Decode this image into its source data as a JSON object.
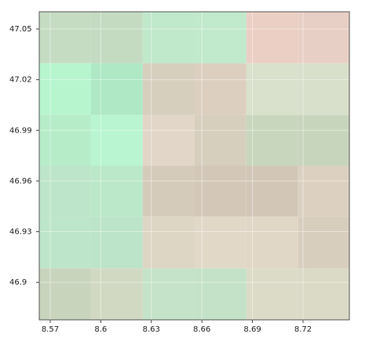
{
  "chart_data": {
    "type": "heatmap",
    "x": [
      8.5635,
      8.5942,
      8.6249,
      8.6557,
      8.6864,
      8.7171,
      8.7475
    ],
    "y": [
      47.0602,
      47.0297,
      46.9991,
      46.969,
      46.9389,
      46.9083,
      46.8778
    ],
    "colors": [
      [
        "#c5dcc3",
        "#c4dbc2",
        "#c0e8cb",
        "#c1e9cc",
        "#ebcfc4",
        "#e8cfc5"
      ],
      [
        "#b7f5cf",
        "#aee8c5",
        "#d6cfbe",
        "#dccfc0",
        "#d9e0cc",
        "#d8dfcb"
      ],
      [
        "#b7ecc9",
        "#b8f5d0",
        "#e1d6c8",
        "#d6cfbe",
        "#c9d6be",
        "#c8d5bd"
      ],
      [
        "#bde5c9",
        "#bbe8c8",
        "#d5cbbb",
        "#d3c8b8",
        "#d2c7b7",
        "#dcd1c0"
      ],
      [
        "#bde5c9",
        "#bce4c8",
        "#ddd6c4",
        "#e2d8c8",
        "#e1d7c7",
        "#d8cebe"
      ],
      [
        "#c9d4bd",
        "#d2d9c3",
        "#c5e3c8",
        "#c4e2c7",
        "#dcdbc8",
        "#dbdac7"
      ]
    ],
    "xlim": [
      8.5635,
      8.7475
    ],
    "ylim": [
      46.8778,
      47.0602
    ],
    "xticks": [
      8.57,
      8.6,
      8.63,
      8.66,
      8.69,
      8.72
    ],
    "yticks": [
      46.9,
      46.93,
      46.96,
      46.99,
      47.02,
      47.05
    ],
    "grid": true
  }
}
